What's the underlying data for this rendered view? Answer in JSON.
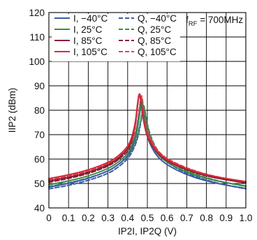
{
  "chart_data": {
    "type": "line",
    "title": "",
    "xlabel": "IP2I, IP2Q (V)",
    "ylabel": "IIP2 (dBm)",
    "xlim": [
      0,
      1.0
    ],
    "ylim": [
      40,
      120
    ],
    "x_ticks": [
      "0",
      "0.1",
      "0.2",
      "0.3",
      "0.4",
      "0.5",
      "0.6",
      "0.7",
      "0.8",
      "0.9",
      "1.0"
    ],
    "y_ticks": [
      "40",
      "50",
      "60",
      "70",
      "80",
      "90",
      "100",
      "110",
      "120"
    ],
    "grid": true,
    "legend_position": "top-left",
    "annotation": {
      "main": "f",
      "sub": "RF",
      "rest": " = 700MHz"
    },
    "x": [
      0,
      0.1,
      0.2,
      0.3,
      0.35,
      0.4,
      0.42,
      0.44,
      0.45,
      0.46,
      0.47,
      0.48,
      0.49,
      0.5,
      0.52,
      0.55,
      0.6,
      0.7,
      0.8,
      0.9,
      1.0
    ],
    "series": [
      {
        "name": "I, −40°C",
        "color": "#3a5ba8",
        "dash": false,
        "values": [
          48.5,
          50.0,
          52.0,
          55.0,
          57.5,
          61.0,
          64.0,
          68.5,
          72.5,
          78.0,
          84.0,
          79.0,
          73.0,
          69.0,
          65.0,
          61.0,
          57.5,
          53.5,
          51.0,
          49.3,
          48.0
        ]
      },
      {
        "name": "I, 25°C",
        "color": "#3a8a4a",
        "dash": false,
        "values": [
          49.5,
          51.0,
          53.0,
          56.0,
          58.5,
          62.0,
          65.0,
          69.5,
          73.5,
          79.0,
          85.0,
          80.0,
          74.0,
          70.0,
          66.0,
          62.0,
          58.5,
          54.5,
          52.0,
          50.3,
          49.0
        ]
      },
      {
        "name": "I, 85°C",
        "color": "#8a1f35",
        "dash": false,
        "values": [
          51.0,
          52.5,
          54.5,
          57.5,
          60.0,
          64.0,
          67.5,
          74.0,
          82.0,
          87.5,
          82.0,
          76.0,
          72.0,
          69.0,
          66.0,
          62.5,
          59.0,
          55.5,
          53.0,
          51.5,
          50.3
        ]
      },
      {
        "name": "I, 105°C",
        "color": "#d62a3c",
        "dash": false,
        "values": [
          52.0,
          53.5,
          55.5,
          58.5,
          61.0,
          65.0,
          68.5,
          75.0,
          83.0,
          88.0,
          83.0,
          77.0,
          72.5,
          69.5,
          66.5,
          63.0,
          59.5,
          56.0,
          53.5,
          52.0,
          50.8
        ]
      },
      {
        "name": "Q, −40°C",
        "color": "#3a5ba8",
        "dash": true,
        "values": [
          47.8,
          49.2,
          51.2,
          54.0,
          56.5,
          60.0,
          62.5,
          66.0,
          68.5,
          72.0,
          76.5,
          82.0,
          78.0,
          73.0,
          67.5,
          62.5,
          58.5,
          54.0,
          51.3,
          49.3,
          47.8
        ]
      },
      {
        "name": "Q, 25°C",
        "color": "#3a8a4a",
        "dash": true,
        "values": [
          48.8,
          50.2,
          52.2,
          55.0,
          57.5,
          61.0,
          63.5,
          67.0,
          69.5,
          73.0,
          77.5,
          83.0,
          79.0,
          74.0,
          68.5,
          63.5,
          59.5,
          55.0,
          52.3,
          50.3,
          48.8
        ]
      },
      {
        "name": "Q, 85°C",
        "color": "#8a1f35",
        "dash": true,
        "values": [
          50.5,
          52.0,
          54.0,
          57.0,
          59.5,
          63.0,
          66.0,
          70.0,
          74.0,
          80.0,
          86.5,
          80.0,
          75.0,
          71.0,
          67.0,
          63.0,
          59.5,
          55.8,
          53.2,
          51.5,
          50.2
        ]
      },
      {
        "name": "Q, 105°C",
        "color": "#e0434f",
        "dash": true,
        "values": [
          51.5,
          53.0,
          55.0,
          58.0,
          60.5,
          64.0,
          67.0,
          71.0,
          75.0,
          81.0,
          87.5,
          81.0,
          75.5,
          71.5,
          67.5,
          63.5,
          60.0,
          56.3,
          53.7,
          52.0,
          50.7
        ]
      }
    ]
  }
}
